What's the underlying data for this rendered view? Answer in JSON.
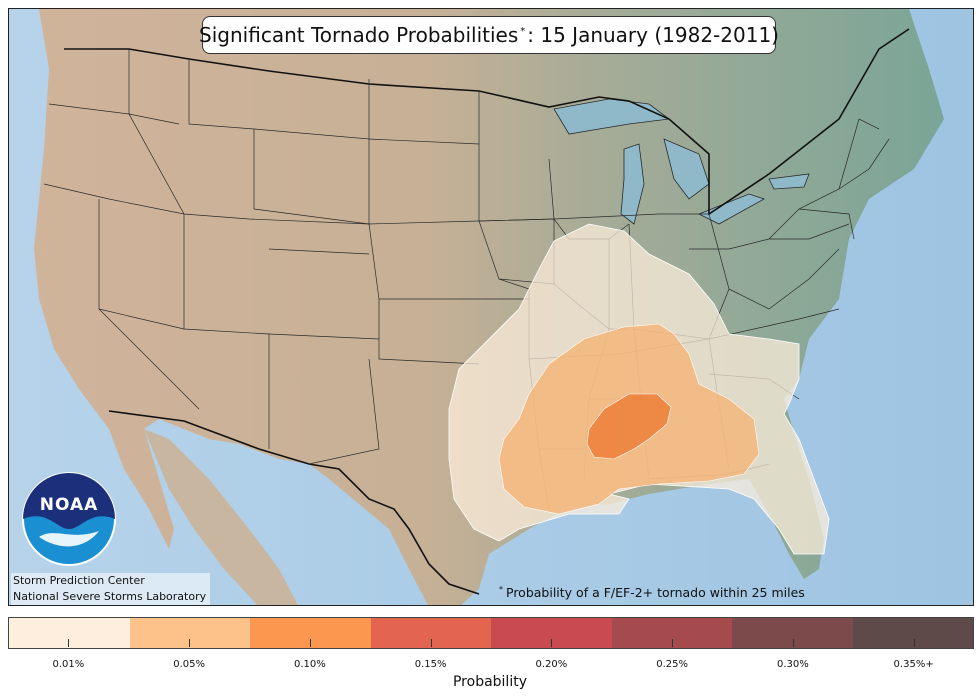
{
  "title": {
    "main": "Significant Tornado Probabilities",
    "marker": "*",
    "rest": ": 15 January (1982-2011)"
  },
  "logo": {
    "text": "NOAA"
  },
  "credits": {
    "line1": "Storm Prediction Center",
    "line2": "National Severe Storms Laboratory"
  },
  "footnote": {
    "marker": "*",
    "text": "Probability of a F/EF-2+ tornado within 25 miles"
  },
  "colorbar": {
    "label": "Probability",
    "bins": [
      {
        "label": "0.01%",
        "color": "#fdeedd"
      },
      {
        "label": "0.05%",
        "color": "#fdc28a"
      },
      {
        "label": "0.10%",
        "color": "#fb974f"
      },
      {
        "label": "0.15%",
        "color": "#e3654f"
      },
      {
        "label": "0.20%",
        "color": "#c94a50"
      },
      {
        "label": "0.25%",
        "color": "#a54b4d"
      },
      {
        "label": "0.30%",
        "color": "#7c4a4a"
      },
      {
        "label": "0.35%+",
        "color": "#5e4a48"
      }
    ]
  },
  "colors": {
    "ocean": "#a9cbe6",
    "land_west": "#cdb39a",
    "land_east": "#7fa89a",
    "mexico": "#c8b8a3",
    "canada": "#8fb0a6"
  }
}
